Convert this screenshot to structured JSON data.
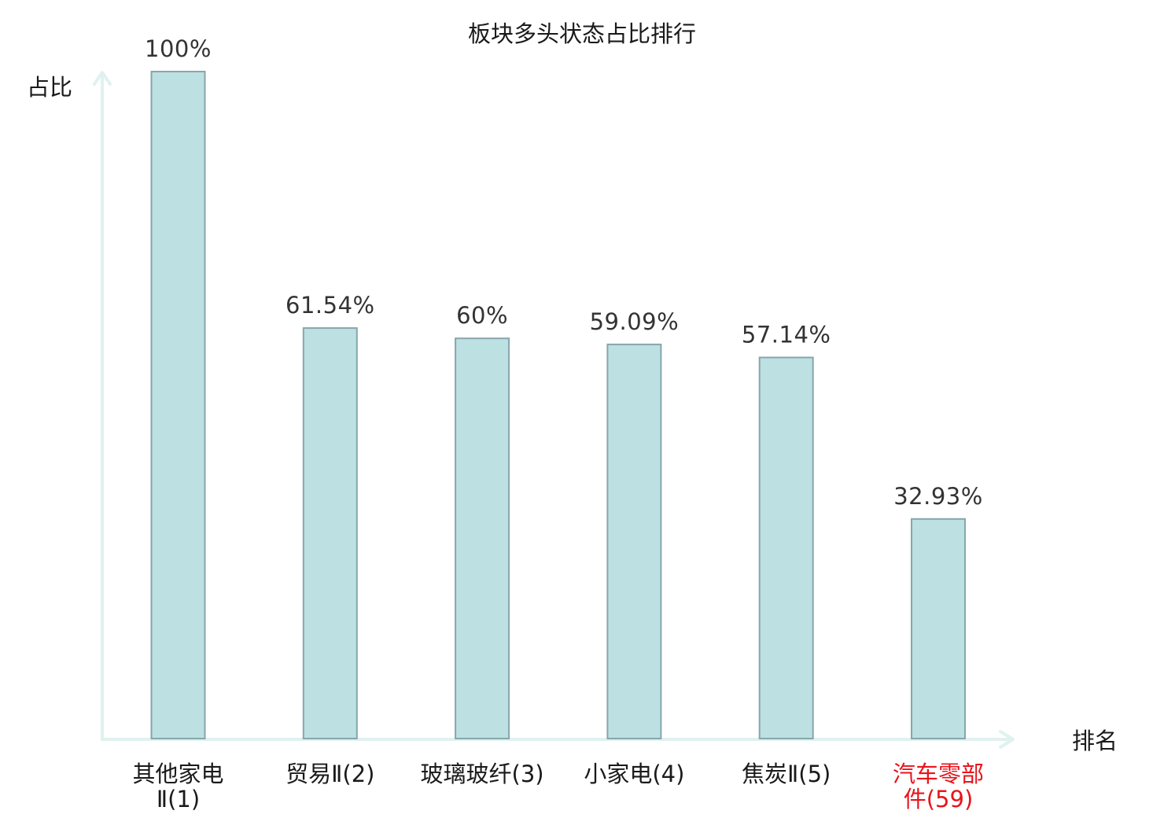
{
  "chart_data": {
    "type": "bar",
    "title": "板块多头状态占比排行",
    "xlabel": "排名",
    "ylabel": "占比",
    "ylim": [
      0,
      100
    ],
    "grid": false,
    "legend": "none",
    "categories": [
      {
        "name": "其他家电Ⅱ",
        "rank": "(1)",
        "lines": [
          "其他家电",
          "Ⅱ(1)"
        ],
        "highlight": false
      },
      {
        "name": "贸易Ⅱ",
        "rank": "(2)",
        "lines": [
          "贸易Ⅱ(2)"
        ],
        "highlight": false
      },
      {
        "name": "玻璃玻纤",
        "rank": "(3)",
        "lines": [
          "玻璃玻纤(3)"
        ],
        "highlight": false
      },
      {
        "name": "小家电",
        "rank": "(4)",
        "lines": [
          "小家电(4)"
        ],
        "highlight": false
      },
      {
        "name": "焦炭Ⅱ",
        "rank": "(5)",
        "lines": [
          "焦炭Ⅱ(5)"
        ],
        "highlight": false
      },
      {
        "name": "汽车零部件",
        "rank": "(59)",
        "lines": [
          "汽车零部",
          "件(59)"
        ],
        "highlight": true
      }
    ],
    "values": [
      100,
      61.54,
      60,
      59.09,
      57.14,
      32.93
    ],
    "value_labels": [
      "100%",
      "61.54%",
      "60%",
      "59.09%",
      "57.14%",
      "32.93%"
    ],
    "colors": {
      "bar_fill": "#bde0e3",
      "bar_stroke": "#86a6ab",
      "axis": "#e0f2ef",
      "highlight_text": "#e8141c",
      "text": "#1a1a1a",
      "value_text": "#333333"
    }
  }
}
